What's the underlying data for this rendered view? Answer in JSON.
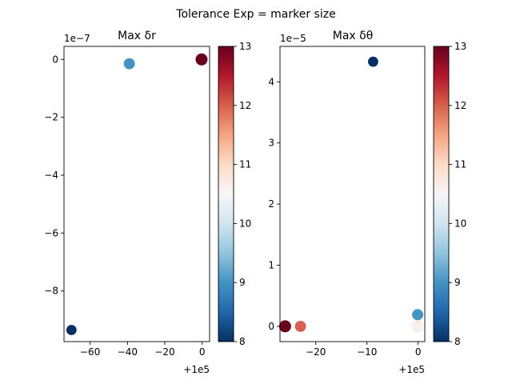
{
  "figure": {
    "title": "Tolerance Exp = marker size"
  },
  "chart_data": [
    {
      "type": "scatter",
      "title": "Max δr",
      "x_offset_label": "+1e5",
      "y_exponent_label": "1e−7",
      "xlim": [
        -74,
        4
      ],
      "ylim": [
        -9.75,
        0.45
      ],
      "x_ticks": [
        -60,
        -40,
        -20,
        0
      ],
      "x_tick_labels": [
        "−60",
        "−40",
        "−20",
        "0"
      ],
      "y_ticks": [
        0,
        -2,
        -4,
        -6,
        -8
      ],
      "y_tick_labels": [
        "0",
        "−2",
        "−4",
        "−6",
        "−8"
      ],
      "points": [
        {
          "x": -70,
          "y": -9.35,
          "c": 8,
          "size": 8
        },
        {
          "x": -39,
          "y": -0.15,
          "c": 9,
          "size": 9
        },
        {
          "x": -0.3,
          "y": 0.0,
          "c": 13,
          "size": 10
        }
      ],
      "colorbar": {
        "min": 8,
        "max": 13,
        "ticks": [
          8,
          9,
          10,
          11,
          12,
          13
        ],
        "tick_labels": [
          "8",
          "9",
          "10",
          "11",
          "12",
          "13"
        ]
      }
    },
    {
      "type": "scatter",
      "title": "Max δθ",
      "x_offset_label": "+1e5",
      "y_exponent_label": "1e−5",
      "xlim": [
        -27,
        1.3
      ],
      "ylim": [
        -0.25,
        4.58
      ],
      "x_ticks": [
        -20,
        -10,
        0
      ],
      "x_tick_labels": [
        "−20",
        "−10",
        "0"
      ],
      "y_ticks": [
        0,
        1,
        2,
        3,
        4
      ],
      "y_tick_labels": [
        "0",
        "1",
        "2",
        "3",
        "4"
      ],
      "points": [
        {
          "x": -8.8,
          "y": 4.33,
          "c": 8,
          "size": 8
        },
        {
          "x": -0.1,
          "y": 0.19,
          "c": 9,
          "size": 9
        },
        {
          "x": -0.1,
          "y": 0.0,
          "c": 11,
          "size": 9
        },
        {
          "x": -0.1,
          "y": -0.02,
          "c": 10.6,
          "size": 9
        },
        {
          "x": -23.0,
          "y": 0.0,
          "c": 12,
          "size": 9
        },
        {
          "x": -26.0,
          "y": 0.0,
          "c": 13,
          "size": 10
        }
      ],
      "colorbar": {
        "min": 8,
        "max": 13,
        "ticks": [
          8,
          9,
          10,
          11,
          12,
          13
        ],
        "tick_labels": [
          "8",
          "9",
          "10",
          "11",
          "12",
          "13"
        ]
      }
    }
  ]
}
